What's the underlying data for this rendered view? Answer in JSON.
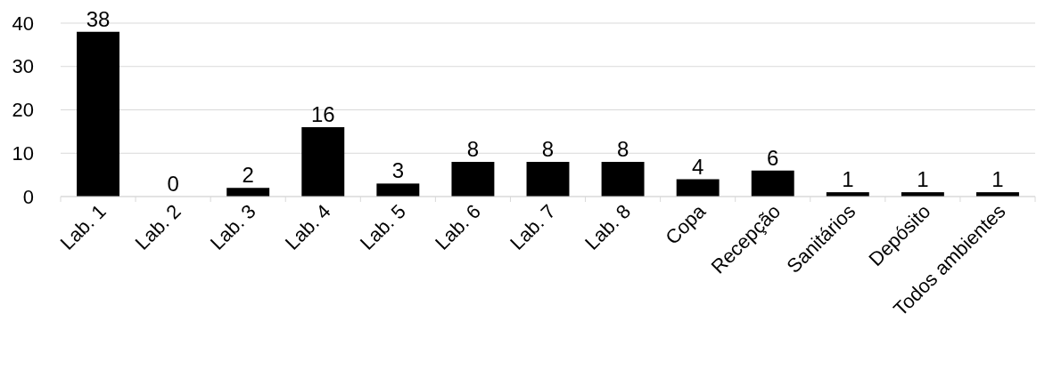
{
  "chart_data": {
    "type": "bar",
    "categories": [
      "Lab. 1",
      "Lab. 2",
      "Lab. 3",
      "Lab. 4",
      "Lab. 5",
      "Lab. 6",
      "Lab. 7",
      "Lab. 8",
      "Copa",
      "Recepção",
      "Sanitários",
      "Depósito",
      "Todos ambientes"
    ],
    "values": [
      38,
      0,
      2,
      16,
      3,
      8,
      8,
      8,
      4,
      6,
      1,
      1,
      1
    ],
    "color": "#000000",
    "ylim": [
      0,
      40
    ],
    "yticks": [
      0,
      10,
      20,
      30,
      40
    ],
    "grid": "y",
    "data_labels": true
  }
}
